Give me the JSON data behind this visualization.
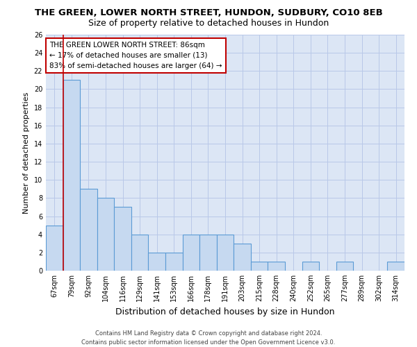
{
  "title": "THE GREEN, LOWER NORTH STREET, HUNDON, SUDBURY, CO10 8EB",
  "subtitle": "Size of property relative to detached houses in Hundon",
  "xlabel": "Distribution of detached houses by size in Hundon",
  "ylabel": "Number of detached properties",
  "categories": [
    "67sqm",
    "79sqm",
    "92sqm",
    "104sqm",
    "116sqm",
    "129sqm",
    "141sqm",
    "153sqm",
    "166sqm",
    "178sqm",
    "191sqm",
    "203sqm",
    "215sqm",
    "228sqm",
    "240sqm",
    "252sqm",
    "265sqm",
    "277sqm",
    "289sqm",
    "302sqm",
    "314sqm"
  ],
  "values": [
    5,
    21,
    9,
    8,
    7,
    4,
    2,
    2,
    4,
    4,
    4,
    3,
    1,
    1,
    0,
    1,
    0,
    1,
    0,
    0,
    1
  ],
  "bar_color": "#c6d9f0",
  "bar_edge_color": "#5b9bd5",
  "grid_color": "#b8c8e8",
  "background_color": "#dce6f5",
  "vline_color": "#c00000",
  "annotation_text": "THE GREEN LOWER NORTH STREET: 86sqm\n← 17% of detached houses are smaller (13)\n83% of semi-detached houses are larger (64) →",
  "annotation_box_color": "#ffffff",
  "annotation_box_edge": "#c00000",
  "ylim": [
    0,
    26
  ],
  "yticks": [
    0,
    2,
    4,
    6,
    8,
    10,
    12,
    14,
    16,
    18,
    20,
    22,
    24,
    26
  ],
  "footer_line1": "Contains HM Land Registry data © Crown copyright and database right 2024.",
  "footer_line2": "Contains public sector information licensed under the Open Government Licence v3.0.",
  "title_fontsize": 9.5,
  "subtitle_fontsize": 9,
  "tick_fontsize": 7,
  "ylabel_fontsize": 8,
  "xlabel_fontsize": 9,
  "annotation_fontsize": 7.5,
  "footer_fontsize": 6
}
